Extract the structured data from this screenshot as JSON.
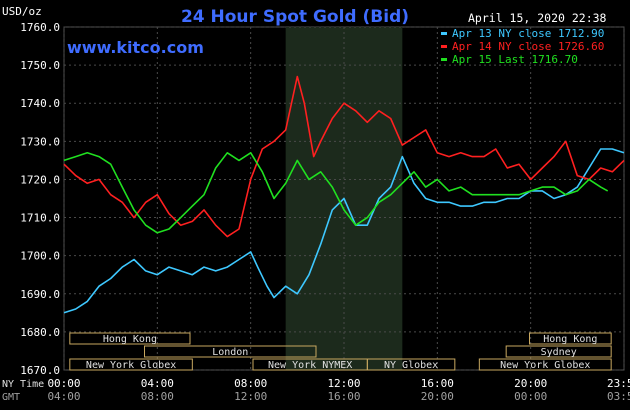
{
  "header": {
    "units_label": "USD/oz",
    "title": "24 Hour Spot Gold (Bid)",
    "timestamp": "April 15, 2020 22:38",
    "website": "www.kitco.com"
  },
  "legend": [
    {
      "label": "Apr 13 NY close 1712.90",
      "color": "#3ec8ff"
    },
    {
      "label": "Apr 14 NY close 1726.60",
      "color": "#ff2020"
    },
    {
      "label": "Apr 15 Last 1716.70",
      "color": "#20e020"
    }
  ],
  "axis_labels": {
    "ny_time": "NY Time",
    "gmt": "GMT",
    "ny_ticks": [
      "00:00",
      "04:00",
      "08:00",
      "12:00",
      "16:00",
      "20:00",
      "23:59"
    ],
    "gmt_ticks": [
      "04:00",
      "08:00",
      "12:00",
      "16:00",
      "20:00",
      "00:00",
      "03:59"
    ]
  },
  "market_sessions": {
    "row1": [
      {
        "label": "Hong Kong",
        "start": 0.5,
        "end": 10.8
      },
      {
        "label": "Hong Kong",
        "start": 39.9,
        "end": 46.9
      }
    ],
    "row2": [
      {
        "label": "London",
        "start": 6.9,
        "end": 21.6
      },
      {
        "label": "Sydney",
        "start": 37.9,
        "end": 46.9
      }
    ],
    "row3": [
      {
        "label": "New York Globex",
        "start": 0.5,
        "end": 11.0
      },
      {
        "label": "New York NYMEX",
        "start": 16.2,
        "end": 26.0
      },
      {
        "label": "NY Globex",
        "start": 26.0,
        "end": 33.5
      },
      {
        "label": "New York Globex",
        "start": 35.6,
        "end": 46.9
      }
    ]
  },
  "chart_data": {
    "type": "line",
    "title": "24 Hour Spot Gold (Bid)",
    "ylabel": "USD/oz",
    "ylim": [
      1670,
      1760
    ],
    "xlim": [
      0,
      24
    ],
    "y_ticks": [
      1670.0,
      1680.0,
      1690.0,
      1700.0,
      1710.0,
      1720.0,
      1730.0,
      1740.0,
      1750.0,
      1760.0
    ],
    "shaded_region": [
      9.5,
      14.5
    ],
    "x_unit": "NY hours",
    "series": [
      {
        "name": "Apr 13 NY close 1712.90",
        "color": "#3ec8ff",
        "x": [
          0,
          0.5,
          1.0,
          1.5,
          2.0,
          2.5,
          3.0,
          3.5,
          4.0,
          4.5,
          5.0,
          5.5,
          6.0,
          6.5,
          7.0,
          7.5,
          8.0,
          8.3,
          8.7,
          9.0,
          9.5,
          10.0,
          10.5,
          11.0,
          11.5,
          12.0,
          12.5,
          13.0,
          13.5,
          14.0,
          14.5,
          15.0,
          15.5,
          16.0,
          16.5,
          17.0,
          17.5,
          18.0,
          18.5,
          19.0,
          19.5,
          20.0,
          20.5,
          21.0,
          21.5,
          22.0,
          22.5,
          23.0,
          23.5,
          24.0
        ],
        "y": [
          1685,
          1686,
          1688,
          1692,
          1694,
          1697,
          1699,
          1696,
          1695,
          1697,
          1696,
          1695,
          1697,
          1696,
          1697,
          1699,
          1701,
          1697,
          1692,
          1689,
          1692,
          1690,
          1695,
          1703,
          1712,
          1715,
          1708,
          1708,
          1715,
          1718,
          1726,
          1719,
          1715,
          1714,
          1714,
          1713,
          1713,
          1714,
          1714,
          1715,
          1715,
          1717,
          1717,
          1715,
          1716,
          1718,
          1723,
          1728,
          1728,
          1727
        ]
      },
      {
        "name": "Apr 14 NY close 1726.60",
        "color": "#ff2020",
        "x": [
          0,
          0.5,
          1.0,
          1.5,
          2.0,
          2.5,
          3.0,
          3.5,
          4.0,
          4.5,
          5.0,
          5.5,
          6.0,
          6.5,
          7.0,
          7.5,
          8.0,
          8.5,
          9.0,
          9.5,
          10.0,
          10.3,
          10.7,
          11.0,
          11.5,
          12.0,
          12.5,
          13.0,
          13.5,
          14.0,
          14.5,
          15.0,
          15.5,
          16.0,
          16.5,
          17.0,
          17.5,
          18.0,
          18.5,
          19.0,
          19.5,
          20.0,
          20.5,
          21.0,
          21.5,
          22.0,
          22.5,
          23.0,
          23.5,
          24.0
        ],
        "y": [
          1724,
          1721,
          1719,
          1720,
          1716,
          1714,
          1710,
          1714,
          1716,
          1711,
          1708,
          1709,
          1712,
          1708,
          1705,
          1707,
          1720,
          1728,
          1730,
          1733,
          1747,
          1740,
          1726,
          1730,
          1736,
          1740,
          1738,
          1735,
          1738,
          1736,
          1729,
          1731,
          1733,
          1727,
          1726,
          1727,
          1726,
          1726,
          1728,
          1723,
          1724,
          1720,
          1723,
          1726,
          1730,
          1721,
          1720,
          1723,
          1722,
          1725
        ]
      },
      {
        "name": "Apr 15 Last 1716.70",
        "color": "#20e020",
        "x": [
          0,
          0.5,
          1.0,
          1.5,
          2.0,
          2.5,
          3.0,
          3.5,
          4.0,
          4.5,
          5.0,
          5.5,
          6.0,
          6.5,
          7.0,
          7.5,
          8.0,
          8.5,
          9.0,
          9.5,
          10.0,
          10.5,
          11.0,
          11.5,
          12.0,
          12.5,
          13.0,
          13.5,
          14.0,
          14.5,
          15.0,
          15.5,
          16.0,
          16.5,
          17.0,
          17.5,
          18.0,
          18.5,
          19.0,
          19.5,
          20.0,
          20.5,
          21.0,
          21.5,
          22.0,
          22.5,
          23.0,
          23.3
        ],
        "y": [
          1725,
          1726,
          1727,
          1726,
          1724,
          1718,
          1712,
          1708,
          1706,
          1707,
          1710,
          1713,
          1716,
          1723,
          1727,
          1725,
          1727,
          1722,
          1715,
          1719,
          1725,
          1720,
          1722,
          1718,
          1712,
          1708,
          1710,
          1714,
          1716,
          1719,
          1722,
          1718,
          1720,
          1717,
          1718,
          1716,
          1716,
          1716,
          1716,
          1716,
          1717,
          1718,
          1718,
          1716,
          1717,
          1720,
          1718,
          1717
        ]
      }
    ]
  }
}
